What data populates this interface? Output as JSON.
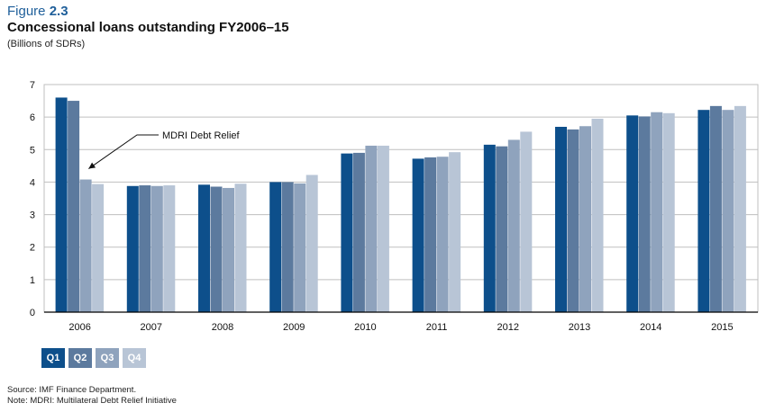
{
  "figure": {
    "label_prefix": "Figure",
    "label_number": "2.3",
    "title": "Concessional loans outstanding FY2006–15",
    "subtitle": "(Billions of SDRs)"
  },
  "colors": {
    "Q1": "#0d4f8b",
    "Q2": "#5c7a9e",
    "Q3": "#8fa3bd",
    "Q4": "#b8c5d6",
    "grid": "#bfbfbf",
    "axis": "#000000"
  },
  "chart_data": {
    "type": "bar",
    "categories": [
      "2006",
      "2007",
      "2008",
      "2009",
      "2010",
      "2011",
      "2012",
      "2013",
      "2014",
      "2015"
    ],
    "series": [
      {
        "name": "Q1",
        "values": [
          6.6,
          3.88,
          3.92,
          4.0,
          4.88,
          4.72,
          5.15,
          5.7,
          6.05,
          6.22
        ]
      },
      {
        "name": "Q2",
        "values": [
          6.5,
          3.9,
          3.86,
          4.0,
          4.9,
          4.76,
          5.1,
          5.62,
          6.02,
          6.34
        ]
      },
      {
        "name": "Q3",
        "values": [
          4.08,
          3.88,
          3.82,
          3.96,
          5.12,
          4.78,
          5.3,
          5.72,
          6.15,
          6.22
        ]
      },
      {
        "name": "Q4",
        "values": [
          3.94,
          3.9,
          3.95,
          4.22,
          5.12,
          4.92,
          5.55,
          5.95,
          6.12,
          6.34
        ]
      }
    ],
    "ylim": [
      0,
      7
    ],
    "yticks": [
      0,
      1,
      2,
      3,
      4,
      5,
      6,
      7
    ],
    "grid": true,
    "legend_position": "bottom-left",
    "annotation": {
      "text": "MDRI Debt Relief",
      "target_category": "2006",
      "target_series": "Q3"
    }
  },
  "legend": {
    "items": [
      "Q1",
      "Q2",
      "Q3",
      "Q4"
    ]
  },
  "footnotes": {
    "source": "Source: IMF Finance Department.",
    "note": "Note: MDRI: Multilateral Debt Relief Initiative"
  }
}
